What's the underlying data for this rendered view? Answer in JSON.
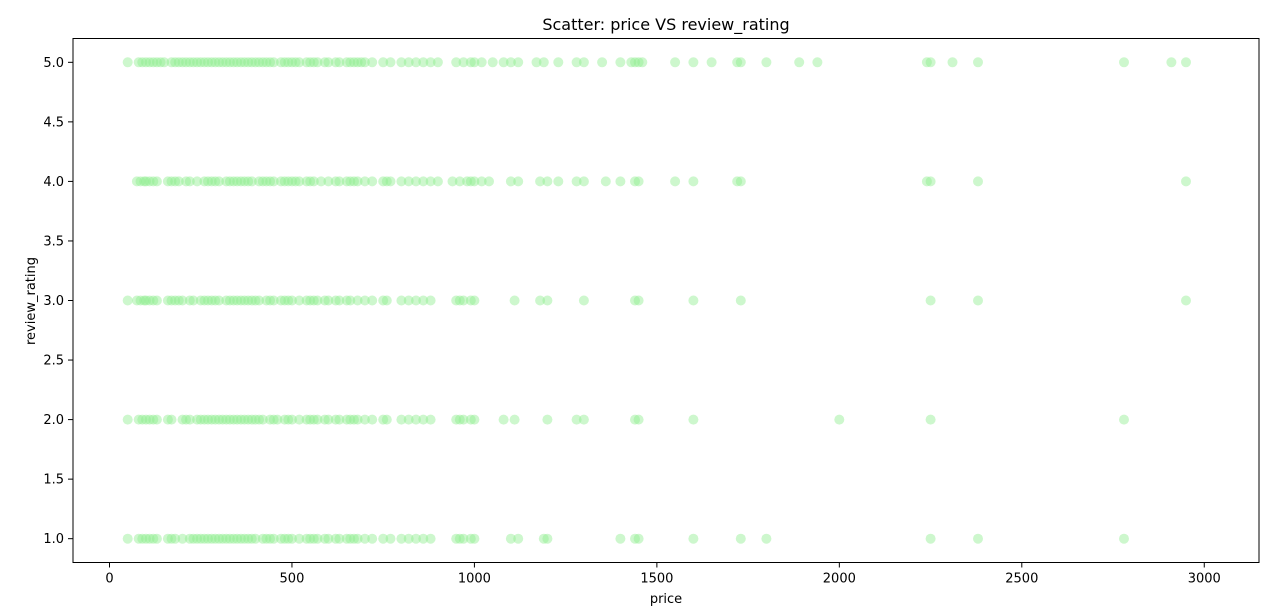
{
  "chart_data": {
    "type": "scatter",
    "title": "Scatter: price VS review_rating",
    "xlabel": "price",
    "ylabel": "review_rating",
    "xlim": [
      -100,
      3150
    ],
    "ylim": [
      0.8,
      5.2
    ],
    "xticks": [
      0,
      500,
      1000,
      1500,
      2000,
      2500,
      3000
    ],
    "yticks": [
      1.0,
      1.5,
      2.0,
      2.5,
      3.0,
      3.5,
      4.0,
      4.5,
      5.0
    ],
    "grid": false,
    "color": "#90ee90",
    "series": [
      {
        "y": 5.0,
        "x": [
          50,
          80,
          90,
          100,
          110,
          120,
          130,
          140,
          150,
          170,
          180,
          190,
          200,
          210,
          220,
          230,
          240,
          250,
          260,
          270,
          280,
          290,
          300,
          310,
          320,
          330,
          340,
          350,
          360,
          370,
          380,
          390,
          400,
          410,
          420,
          430,
          440,
          450,
          470,
          480,
          490,
          500,
          510,
          520,
          540,
          550,
          560,
          570,
          590,
          600,
          620,
          630,
          650,
          660,
          670,
          680,
          690,
          700,
          720,
          750,
          770,
          800,
          820,
          840,
          860,
          880,
          900,
          950,
          970,
          990,
          1000,
          1020,
          1050,
          1080,
          1100,
          1120,
          1170,
          1190,
          1230,
          1280,
          1300,
          1350,
          1400,
          1430,
          1440,
          1450,
          1460,
          1550,
          1600,
          1650,
          1720,
          1730,
          1800,
          1890,
          1940,
          2240,
          2250,
          2310,
          2380,
          2780,
          2910,
          2950
        ]
      },
      {
        "y": 4.0,
        "x": [
          75,
          85,
          95,
          100,
          110,
          120,
          130,
          160,
          170,
          180,
          190,
          210,
          220,
          240,
          260,
          270,
          280,
          290,
          300,
          320,
          330,
          340,
          350,
          360,
          370,
          380,
          390,
          410,
          420,
          430,
          440,
          450,
          470,
          480,
          490,
          500,
          510,
          520,
          540,
          550,
          560,
          580,
          600,
          620,
          630,
          650,
          660,
          670,
          680,
          700,
          720,
          750,
          760,
          770,
          800,
          820,
          840,
          860,
          880,
          900,
          940,
          960,
          980,
          990,
          1000,
          1020,
          1040,
          1100,
          1120,
          1180,
          1200,
          1230,
          1280,
          1300,
          1360,
          1400,
          1440,
          1450,
          1550,
          1600,
          1720,
          1730,
          2240,
          2250,
          2380,
          2950
        ]
      },
      {
        "y": 3.0,
        "x": [
          50,
          75,
          85,
          95,
          100,
          110,
          120,
          130,
          160,
          170,
          180,
          190,
          200,
          220,
          230,
          250,
          260,
          270,
          280,
          290,
          300,
          320,
          330,
          340,
          350,
          360,
          370,
          380,
          390,
          400,
          410,
          430,
          440,
          450,
          470,
          480,
          490,
          500,
          520,
          540,
          550,
          560,
          570,
          590,
          600,
          620,
          630,
          650,
          660,
          680,
          700,
          720,
          750,
          760,
          800,
          820,
          840,
          860,
          880,
          950,
          960,
          970,
          990,
          1000,
          1110,
          1180,
          1200,
          1300,
          1440,
          1450,
          1600,
          1730,
          2250,
          2380,
          2950
        ]
      },
      {
        "y": 2.0,
        "x": [
          50,
          80,
          90,
          100,
          110,
          120,
          130,
          160,
          170,
          200,
          210,
          220,
          240,
          250,
          260,
          270,
          280,
          290,
          300,
          310,
          320,
          330,
          340,
          350,
          360,
          370,
          380,
          390,
          400,
          410,
          420,
          440,
          450,
          460,
          480,
          490,
          500,
          520,
          540,
          550,
          560,
          570,
          590,
          600,
          620,
          630,
          650,
          660,
          670,
          680,
          700,
          720,
          750,
          760,
          800,
          820,
          840,
          860,
          880,
          950,
          960,
          970,
          990,
          1000,
          1080,
          1110,
          1200,
          1280,
          1300,
          1440,
          1450,
          1600,
          2000,
          2250,
          2780
        ]
      },
      {
        "y": 1.0,
        "x": [
          50,
          80,
          90,
          100,
          110,
          120,
          130,
          160,
          170,
          180,
          200,
          220,
          230,
          240,
          250,
          260,
          270,
          280,
          290,
          300,
          310,
          320,
          330,
          340,
          350,
          360,
          370,
          380,
          390,
          400,
          420,
          430,
          440,
          450,
          470,
          480,
          490,
          500,
          520,
          540,
          550,
          560,
          570,
          590,
          600,
          620,
          630,
          650,
          660,
          670,
          680,
          700,
          720,
          750,
          770,
          800,
          820,
          840,
          860,
          880,
          950,
          960,
          970,
          990,
          1000,
          1100,
          1120,
          1190,
          1200,
          1400,
          1440,
          1450,
          1600,
          1730,
          1800,
          2250,
          2380,
          2780
        ]
      }
    ]
  }
}
